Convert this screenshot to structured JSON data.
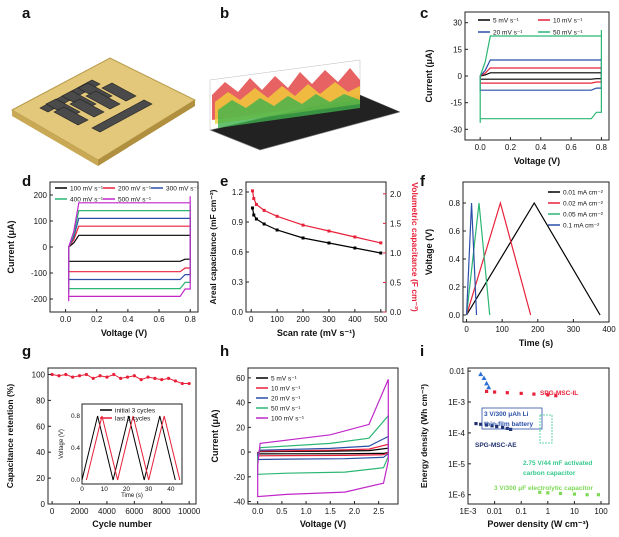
{
  "panel_labels": [
    "a",
    "b",
    "c",
    "d",
    "e",
    "f",
    "g",
    "h",
    "i"
  ],
  "colors": {
    "black": "#000000",
    "red": "#e8213a",
    "blue": "#2b4fa8",
    "green": "#2bb673",
    "magenta": "#c026c9",
    "gold": "#d9c36a",
    "darkgold": "#3b3b3b"
  },
  "chart_data": [
    {
      "panel": "c",
      "type": "line",
      "subtype": "cv",
      "xlabel": "Voltage (V)",
      "ylabel": "Current (μA)",
      "xlim": [
        -0.1,
        0.85
      ],
      "ylim": [
        -36,
        36
      ],
      "xticks": [
        "0.0",
        "0.2",
        "0.4",
        "0.6",
        "0.8"
      ],
      "yticks": [
        "-30",
        "-15",
        "0",
        "15",
        "30"
      ],
      "series": [
        {
          "name": "5 mV s⁻¹",
          "color": "#000000",
          "upper": 1.8,
          "lower": -1.8
        },
        {
          "name": "10 mV s⁻¹",
          "color": "#e8213a",
          "upper": 4.5,
          "lower": -4.0
        },
        {
          "name": "20 mV s⁻¹",
          "color": "#2b4fa8",
          "upper": 9.0,
          "lower": -8.0
        },
        {
          "name": "50 mV s⁻¹",
          "color": "#2bb673",
          "upper": 22.5,
          "lower": -24.0
        }
      ]
    },
    {
      "panel": "d",
      "type": "line",
      "subtype": "cv",
      "xlabel": "Voltage (V)",
      "ylabel": "Current (μA)",
      "xlim": [
        -0.1,
        0.85
      ],
      "ylim": [
        -250,
        250
      ],
      "xticks": [
        "0.0",
        "0.2",
        "0.4",
        "0.6",
        "0.8"
      ],
      "yticks": [
        "-200",
        "-100",
        "0",
        "100",
        "200"
      ],
      "series": [
        {
          "name": "100 mV s⁻¹",
          "color": "#000000",
          "upper": 45,
          "lower": -55
        },
        {
          "name": "200 mV s⁻¹",
          "color": "#e8213a",
          "upper": 80,
          "lower": -95
        },
        {
          "name": "300 mV s⁻¹",
          "color": "#2b4fa8",
          "upper": 110,
          "lower": -125
        },
        {
          "name": "400 mV s⁻¹",
          "color": "#2bb673",
          "upper": 140,
          "lower": -160
        },
        {
          "name": "500 mV s⁻¹",
          "color": "#c026c9",
          "upper": 170,
          "lower": -190
        }
      ]
    },
    {
      "panel": "e",
      "type": "line",
      "xlabel": "Scan rate (mV s⁻¹)",
      "ylabel": "Areal capacitance (mF cm⁻²)",
      "ylabel_right": "Volumetric capacitance (F cm⁻³)",
      "xlim": [
        -20,
        520
      ],
      "ylim": [
        0,
        1.3
      ],
      "ylim_right": [
        0,
        2.2
      ],
      "xticks": [
        "0",
        "100",
        "200",
        "300",
        "400",
        "500"
      ],
      "yticks": [
        "0.0",
        "0.3",
        "0.6",
        "0.9",
        "1.2"
      ],
      "yticks_right": [
        "0.0",
        "0.5",
        "1.0",
        "1.5",
        "2.0"
      ],
      "x": [
        5,
        10,
        20,
        50,
        100,
        200,
        300,
        400,
        500
      ],
      "series": [
        {
          "name": "Areal",
          "color": "#000000",
          "axis": "left",
          "values": [
            1.04,
            0.97,
            0.93,
            0.88,
            0.82,
            0.74,
            0.69,
            0.64,
            0.59
          ]
        },
        {
          "name": "Volumetric",
          "color": "#e8213a",
          "axis": "right",
          "values": [
            2.05,
            1.92,
            1.82,
            1.72,
            1.62,
            1.47,
            1.37,
            1.27,
            1.17
          ]
        }
      ]
    },
    {
      "panel": "f",
      "type": "line",
      "subtype": "gcd",
      "xlabel": "Time (s)",
      "ylabel": "Voltage (V)",
      "xlim": [
        -10,
        400
      ],
      "ylim": [
        -0.05,
        0.95
      ],
      "xticks": [
        "0",
        "100",
        "200",
        "300",
        "400"
      ],
      "yticks": [
        "0.0",
        "0.2",
        "0.4",
        "0.6",
        "0.8"
      ],
      "series": [
        {
          "name": "0.01 mA cm⁻²",
          "color": "#000000",
          "peak": 190,
          "end": 375
        },
        {
          "name": "0.02 mA cm⁻²",
          "color": "#e8213a",
          "peak": 95,
          "end": 180
        },
        {
          "name": "0.05 mA cm⁻²",
          "color": "#2bb673",
          "peak": 35,
          "end": 65
        },
        {
          "name": "0.1 mA cm⁻²",
          "color": "#2b4fa8",
          "peak": 14,
          "end": 28
        }
      ]
    },
    {
      "panel": "g",
      "type": "line",
      "xlabel": "Cycle number",
      "ylabel": "Capacitance retention (%)",
      "xlim": [
        -300,
        10500
      ],
      "ylim": [
        0,
        105
      ],
      "xticks": [
        "0",
        "2000",
        "4000",
        "6000",
        "8000",
        "10000"
      ],
      "yticks": [
        "0",
        "20",
        "40",
        "60",
        "80",
        "100"
      ],
      "x": [
        0,
        500,
        1000,
        1500,
        2000,
        2500,
        3000,
        3500,
        4000,
        4500,
        5000,
        5500,
        6000,
        6500,
        7000,
        7500,
        8000,
        8500,
        9000,
        9500,
        10000
      ],
      "series": [
        {
          "name": "retention",
          "color": "#e8213a",
          "values": [
            100,
            99,
            100,
            98,
            99,
            100,
            97,
            99,
            98,
            100,
            97,
            98,
            99,
            96,
            98,
            97,
            96,
            97,
            95,
            93,
            93
          ]
        }
      ],
      "inset": {
        "xlabel": "Time (s)",
        "ylabel": "Voltage (V)",
        "xticks": [
          "0",
          "10",
          "20",
          "30",
          "40"
        ],
        "yticks": [
          "0.0",
          "0.4",
          "0.8"
        ],
        "legend": [
          "initial 3 cycles",
          "last 3 cycles"
        ],
        "legend_colors": [
          "#000000",
          "#e8213a"
        ]
      }
    },
    {
      "panel": "h",
      "type": "line",
      "subtype": "cv",
      "xlabel": "Voltage (V)",
      "ylabel": "Current (μA)",
      "xlim": [
        -0.2,
        2.9
      ],
      "ylim": [
        -42,
        68
      ],
      "xticks": [
        "0.0",
        "0.5",
        "1.0",
        "1.5",
        "2.0",
        "2.5"
      ],
      "yticks": [
        "-40",
        "-20",
        "0",
        "20",
        "40",
        "60"
      ],
      "series": [
        {
          "name": "5 mV s⁻¹",
          "color": "#000000",
          "upper": 1.5,
          "lower": -1.5
        },
        {
          "name": "10 mV s⁻¹",
          "color": "#e8213a",
          "upper": 3,
          "lower": -3
        },
        {
          "name": "20 mV s⁻¹",
          "color": "#2b4fa8",
          "upper": 6,
          "lower": -6
        },
        {
          "name": "50 mV s⁻¹",
          "color": "#2bb673",
          "upper": 14,
          "lower": -18
        },
        {
          "name": "100 mV s⁻¹",
          "color": "#c026c9",
          "upper": 28,
          "lower": -36
        }
      ]
    },
    {
      "panel": "i",
      "type": "scatter",
      "subtype": "ragone",
      "xlabel": "Power density (W cm⁻³)",
      "ylabel": "Energy density (Wh cm⁻³)",
      "xscale": "log",
      "yscale": "log",
      "xticks": [
        "1E-3",
        "0.01",
        "0.1",
        "1",
        "10",
        "100"
      ],
      "yticks": [
        "1E-6",
        "1E-5",
        "1E-4",
        "1E-3",
        "0.01"
      ],
      "series": [
        {
          "name": "SPG-MSC-IL",
          "color": "#e8213a",
          "x": [
            0.005,
            0.01,
            0.03,
            0.1,
            0.3,
            1,
            2
          ],
          "y": [
            0.0022,
            0.0021,
            0.002,
            0.0019,
            0.0018,
            0.0017,
            0.0016
          ]
        },
        {
          "name": "SPG-MSC-AE",
          "color": "#1e2f6f",
          "x": [
            0.002,
            0.003,
            0.005,
            0.008,
            0.012,
            0.02,
            0.03,
            0.04
          ],
          "y": [
            0.0002,
            0.00019,
            0.00018,
            0.00017,
            0.00016,
            0.00015,
            0.00014,
            0.00013
          ]
        },
        {
          "name": "blue-triangles",
          "color": "#2b6fd6",
          "x": [
            0.003,
            0.004,
            0.005,
            0.006
          ],
          "y": [
            0.008,
            0.006,
            0.004,
            0.003
          ]
        },
        {
          "name": "electrolytic",
          "color": "#7ed957",
          "x": [
            0.5,
            1,
            3,
            10,
            30,
            80
          ],
          "y": [
            1.2e-06,
            1.15e-06,
            1.1e-06,
            1.05e-06,
            1e-06,
            1e-06
          ]
        }
      ],
      "annotations": [
        {
          "text": "SPG-MSC-IL",
          "color": "#e8213a"
        },
        {
          "text": "3 V/300 μAh Li",
          "color": "#2b4fa8"
        },
        {
          "text": "thin-film battery",
          "color": "#2b4fa8"
        },
        {
          "text": "SPG-MSC-AE",
          "color": "#1e2f6f"
        },
        {
          "text": "2.75 V/44 mF activated",
          "color": "#36c98e"
        },
        {
          "text": "carbon capacitor",
          "color": "#36c98e"
        },
        {
          "text": "3 V/300 μF electrolytic capacitor",
          "color": "#7ed957"
        }
      ]
    }
  ]
}
